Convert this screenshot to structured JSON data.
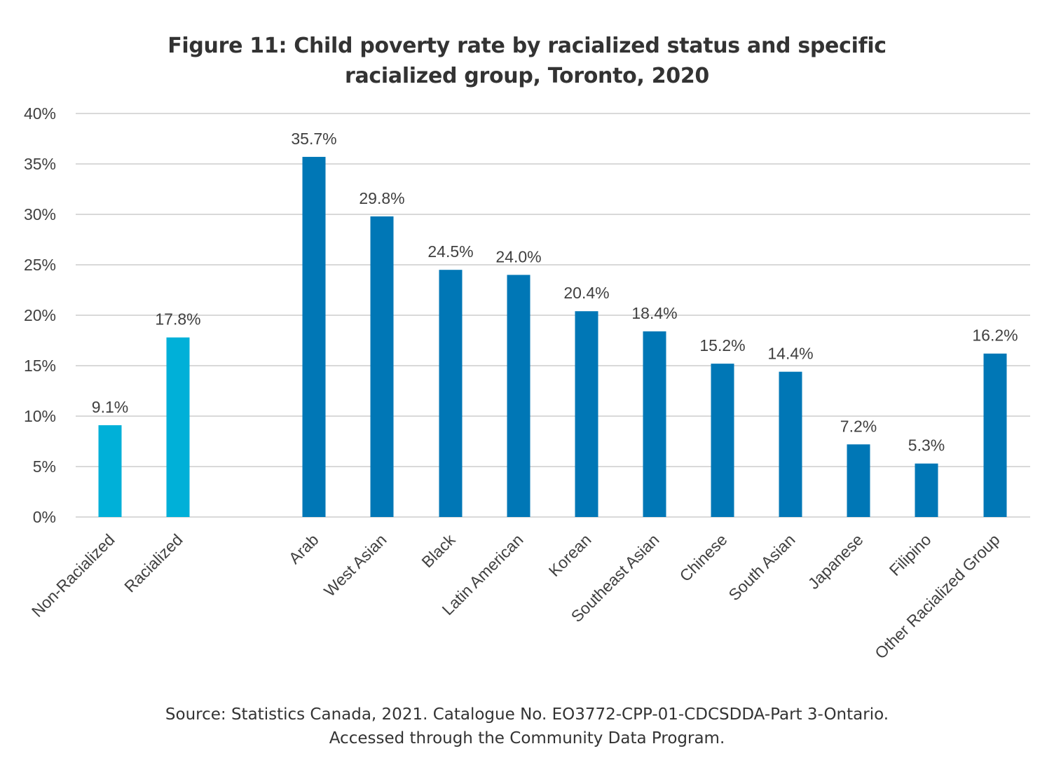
{
  "title_lines": [
    "Figure 11: Child poverty rate by racialized status and specific",
    "racialized group, Toronto, 2020"
  ],
  "source_lines": [
    "Source: Statistics Canada, 2021. Catalogue No. EO3772-CPP-01-CDCSDDA-Part 3-Ontario.",
    "Accessed through the Community Data Program."
  ],
  "colors": {
    "status_bar": "#00B0D8",
    "group_bar": "#0077B6",
    "gridline": "#D9D9D9",
    "text": "#404040"
  },
  "chart_data": {
    "type": "bar",
    "title": "Figure 11: Child poverty rate by racialized status and specific racialized group, Toronto, 2020",
    "xlabel": "",
    "ylabel": "",
    "ylim": [
      0,
      40
    ],
    "yticks": [
      "0%",
      "5%",
      "10%",
      "15%",
      "20%",
      "25%",
      "30%",
      "35%",
      "40%"
    ],
    "grid": true,
    "legend": "none",
    "categories": [
      "Non-Racialized",
      "Racialized",
      "Arab",
      "West Asian",
      "Black",
      "Latin American",
      "Korean",
      "Southeast Asian",
      "Chinese",
      "South Asian",
      "Japanese",
      "Filipino",
      "Other Racialized Group"
    ],
    "values": [
      9.1,
      17.8,
      35.7,
      29.8,
      24.5,
      24.0,
      20.4,
      18.4,
      15.2,
      14.4,
      7.2,
      5.3,
      16.2
    ],
    "value_labels": [
      "9.1%",
      "17.8%",
      "35.7%",
      "29.8%",
      "24.5%",
      "24.0%",
      "20.4%",
      "18.4%",
      "15.2%",
      "14.4%",
      "7.2%",
      "5.3%",
      "16.2%"
    ],
    "bar_groups": [
      "status",
      "status",
      "group",
      "group",
      "group",
      "group",
      "group",
      "group",
      "group",
      "group",
      "group",
      "group",
      "group"
    ]
  }
}
